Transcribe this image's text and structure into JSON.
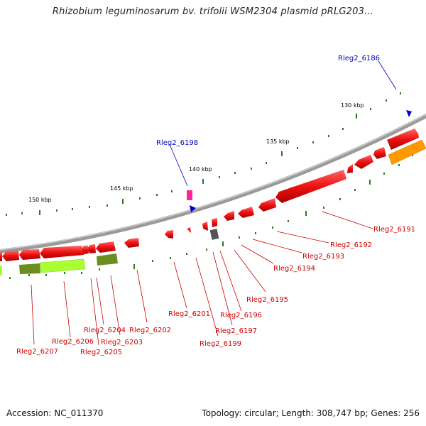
{
  "title": "Rhizobium leguminosarum bv. trifolii WSM2304 plasmid pRLG203...",
  "footer": {
    "accession": "Accession: NC_011370",
    "topology": "Topology: circular; Length: 308,747 bp; Genes: 256"
  },
  "scale_labels": [
    "130 kbp",
    "135 kbp",
    "140 kbp",
    "145 kbp",
    "150 kbp"
  ],
  "gene_labels_red": [
    "Rleg2_6191",
    "Rleg2_6192",
    "Rleg2_6193",
    "Rleg2_6194",
    "Rleg2_6195",
    "Rleg2_6196",
    "Rleg2_6197",
    "Rleg2_6199",
    "Rleg2_6201",
    "Rleg2_6202",
    "Rleg2_6203",
    "Rleg2_6204",
    "Rleg2_6205",
    "Rleg2_6206",
    "Rleg2_6207"
  ],
  "gene_labels_blue": [
    "Rleg2_6186",
    "Rleg2_6198"
  ],
  "colors": {
    "gene_red": "#ee1111",
    "backbone": "#888888",
    "tick_green": "#2a7a1a",
    "orange": "#ff9900",
    "lime": "#aaff33",
    "olive": "#6b8e23",
    "magenta": "#ff2299",
    "marker_blue": "#0000cc",
    "label_red": "#cc0000",
    "label_blue": "#0000bb"
  }
}
